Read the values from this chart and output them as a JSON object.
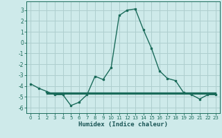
{
  "title": "",
  "xlabel": "Humidex (Indice chaleur)",
  "x": [
    0,
    1,
    2,
    3,
    4,
    5,
    6,
    7,
    8,
    9,
    10,
    11,
    12,
    13,
    14,
    15,
    16,
    17,
    18,
    19,
    20,
    21,
    22,
    23
  ],
  "y": [
    -3.8,
    -4.2,
    -4.5,
    -4.8,
    -4.8,
    -5.8,
    -5.5,
    -4.8,
    -3.1,
    -3.4,
    -2.3,
    2.5,
    3.0,
    3.1,
    1.2,
    -0.5,
    -2.6,
    -3.3,
    -3.5,
    -4.6,
    -4.8,
    -5.2,
    -4.8,
    -4.8
  ],
  "hline_y": -4.65,
  "hline_offsets": [
    -0.08,
    0.0,
    0.08
  ],
  "xlim": [
    -0.5,
    23.5
  ],
  "ylim": [
    -6.5,
    3.8
  ],
  "yticks": [
    -6,
    -5,
    -4,
    -3,
    -2,
    -1,
    0,
    1,
    2,
    3
  ],
  "xticks": [
    0,
    1,
    2,
    3,
    4,
    5,
    6,
    7,
    8,
    9,
    10,
    11,
    12,
    13,
    14,
    15,
    16,
    17,
    18,
    19,
    20,
    21,
    22,
    23
  ],
  "line_color": "#1a6b5a",
  "hline_color": "#1a6b5a",
  "bg_color": "#ceeaea",
  "grid_color": "#aecece",
  "tick_color": "#1a6b5a",
  "label_color": "#1a5555"
}
